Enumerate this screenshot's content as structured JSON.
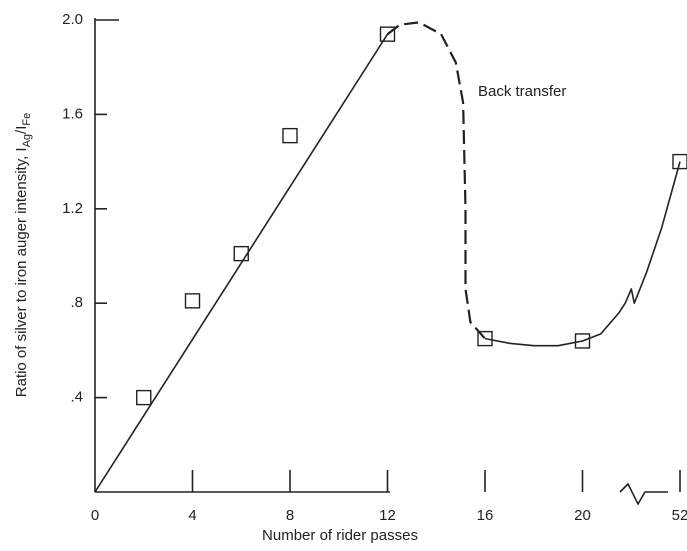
{
  "chart_data": {
    "type": "scatter",
    "xlabel": "Number of rider passes",
    "ylabel": [
      "Ratio of silver to iron auger intensity, I",
      "Ag",
      "/I",
      "Fe"
    ],
    "annotation": "Back transfer",
    "xlim": [
      0,
      52
    ],
    "xticks": [
      0,
      4,
      8,
      12,
      16,
      20,
      52
    ],
    "ylim": [
      0,
      2.0
    ],
    "yticks": [
      {
        "value": 0.4,
        "label": ".4"
      },
      {
        "value": 0.8,
        "label": ".8"
      },
      {
        "value": 1.2,
        "label": "1.2"
      },
      {
        "value": 1.6,
        "label": "1.6"
      },
      {
        "value": 2.0,
        "label": "2.0"
      }
    ],
    "color": "#222222",
    "series": [
      {
        "style": "marker",
        "x": [
          2,
          4,
          6,
          8,
          12,
          16,
          20,
          52
        ],
        "values": [
          0.4,
          0.81,
          1.01,
          1.51,
          1.94,
          0.65,
          0.64,
          1.4
        ]
      },
      {
        "style": "line",
        "x": [
          0,
          12
        ],
        "values": [
          0,
          1.94
        ]
      },
      {
        "style": "dashed",
        "x": [
          12,
          12.5,
          13.3,
          14.2,
          14.8,
          15.1,
          15.2,
          15.2,
          15.4,
          16
        ],
        "values": [
          1.94,
          1.98,
          1.99,
          1.94,
          1.82,
          1.65,
          1.2,
          0.86,
          0.72,
          0.65
        ]
      },
      {
        "style": "line",
        "x": [
          16,
          17,
          18,
          19,
          20,
          26,
          32,
          34,
          36,
          37,
          41,
          46,
          52
        ],
        "values": [
          0.65,
          0.63,
          0.62,
          0.62,
          0.64,
          0.67,
          0.76,
          0.8,
          0.86,
          0.8,
          0.93,
          1.12,
          1.4
        ]
      }
    ]
  }
}
